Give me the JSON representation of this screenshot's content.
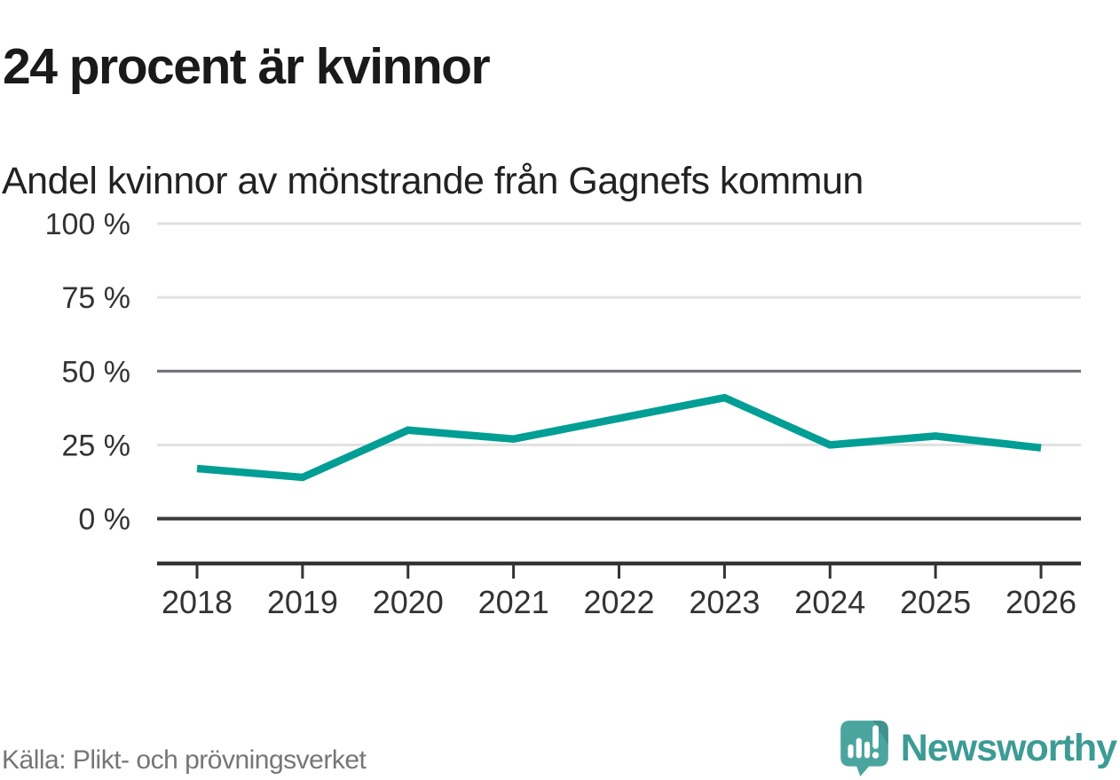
{
  "header": {
    "title": "24 procent är kvinnor",
    "subtitle": "Andel kvinnor av mönstrande från Gagnefs kommun"
  },
  "footer": {
    "source": "Källa: Plikt- och prövningsverket",
    "brand_name": "Newsworthy",
    "brand_icon": "newsworthy-speech-bubble-bar-chart-icon"
  },
  "colors": {
    "background": "#ffffff",
    "line": "#009e94",
    "grid_light": "#e1e1e1",
    "grid_mid": "#6b6b72",
    "grid_zero": "#3a3a3a",
    "axis": "#333333",
    "title_text": "#1a1a1a",
    "subtitle_text": "#222222",
    "tick_text": "#333333",
    "source_text": "#767676",
    "brand_teal": "#3d9b95",
    "logo_bubble": "#4ba59f",
    "logo_bubble_shade": "#3f938e"
  },
  "chart_data": {
    "type": "line",
    "title": "24 procent är kvinnor",
    "description": "Andel kvinnor av mönstrande från Gagnefs kommun",
    "categories": [
      "2018",
      "2019",
      "2020",
      "2021",
      "2022",
      "2023",
      "2024",
      "2025",
      "2026"
    ],
    "series": [
      {
        "name": "Andel kvinnor av mönstrande",
        "values": [
          17,
          14,
          30,
          27,
          34,
          41,
          25,
          28,
          24
        ]
      }
    ],
    "unit": "%",
    "ylim": [
      0,
      100
    ],
    "y_ticks": [
      {
        "value": 100,
        "label": "100 %",
        "emphasis": "light"
      },
      {
        "value": 75,
        "label": "75 %",
        "emphasis": "light"
      },
      {
        "value": 50,
        "label": "50 %",
        "emphasis": "medium"
      },
      {
        "value": 25,
        "label": "25 %",
        "emphasis": "light"
      },
      {
        "value": 0,
        "label": "0 %",
        "emphasis": "strong"
      }
    ],
    "grid": true,
    "legend": "none",
    "markers": false
  }
}
